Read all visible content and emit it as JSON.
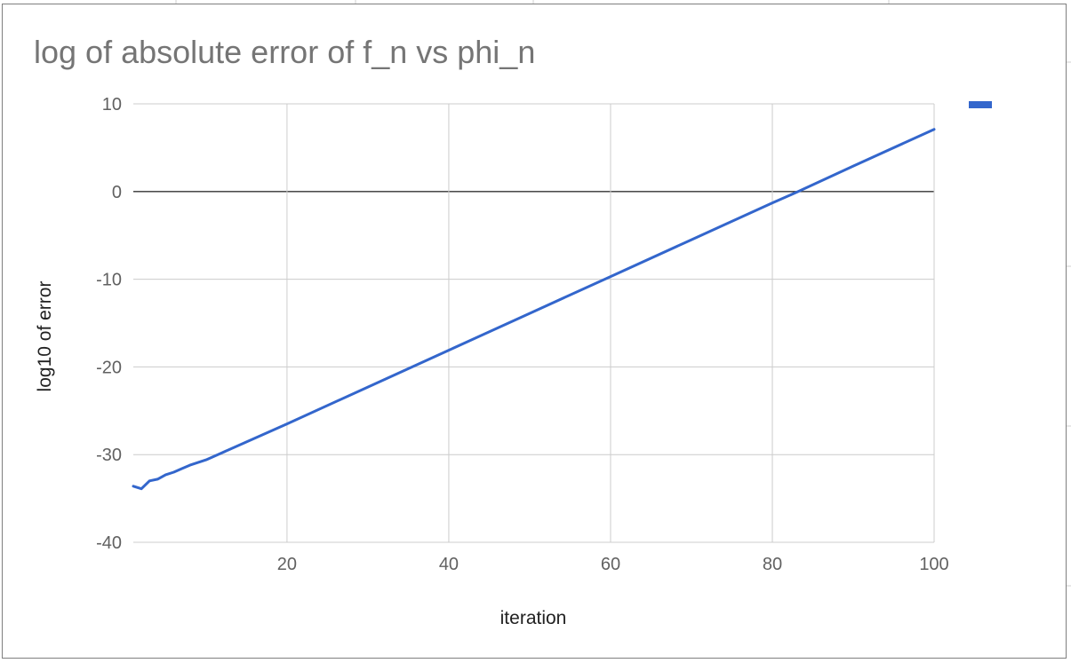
{
  "chart_data": {
    "type": "line",
    "title": "log of absolute error of f_n vs phi_n",
    "xlabel": "iteration",
    "ylabel": "log10 of error",
    "xlim": [
      1,
      100
    ],
    "ylim": [
      -40,
      10
    ],
    "x_ticks": [
      "20",
      "40",
      "60",
      "80",
      "100"
    ],
    "y_ticks": [
      "10",
      "0",
      "-10",
      "-20",
      "-30",
      "-40"
    ],
    "grid": true,
    "legend": "top-right",
    "series": [
      {
        "color": "#3366cc",
        "points": [
          [
            1,
            -33.6
          ],
          [
            2,
            -33.9
          ],
          [
            3,
            -33.0
          ],
          [
            4,
            -32.8
          ],
          [
            5,
            -32.3
          ],
          [
            6,
            -32.0
          ],
          [
            7,
            -31.6
          ],
          [
            8,
            -31.2
          ],
          [
            10,
            -30.6
          ],
          [
            20,
            -26.5
          ],
          [
            30,
            -22.3
          ],
          [
            40,
            -18.1
          ],
          [
            50,
            -13.9
          ],
          [
            60,
            -9.7
          ],
          [
            70,
            -5.5
          ],
          [
            80,
            -1.3
          ],
          [
            83.2,
            0.0
          ],
          [
            90,
            2.9
          ],
          [
            100,
            7.1
          ]
        ]
      }
    ]
  }
}
